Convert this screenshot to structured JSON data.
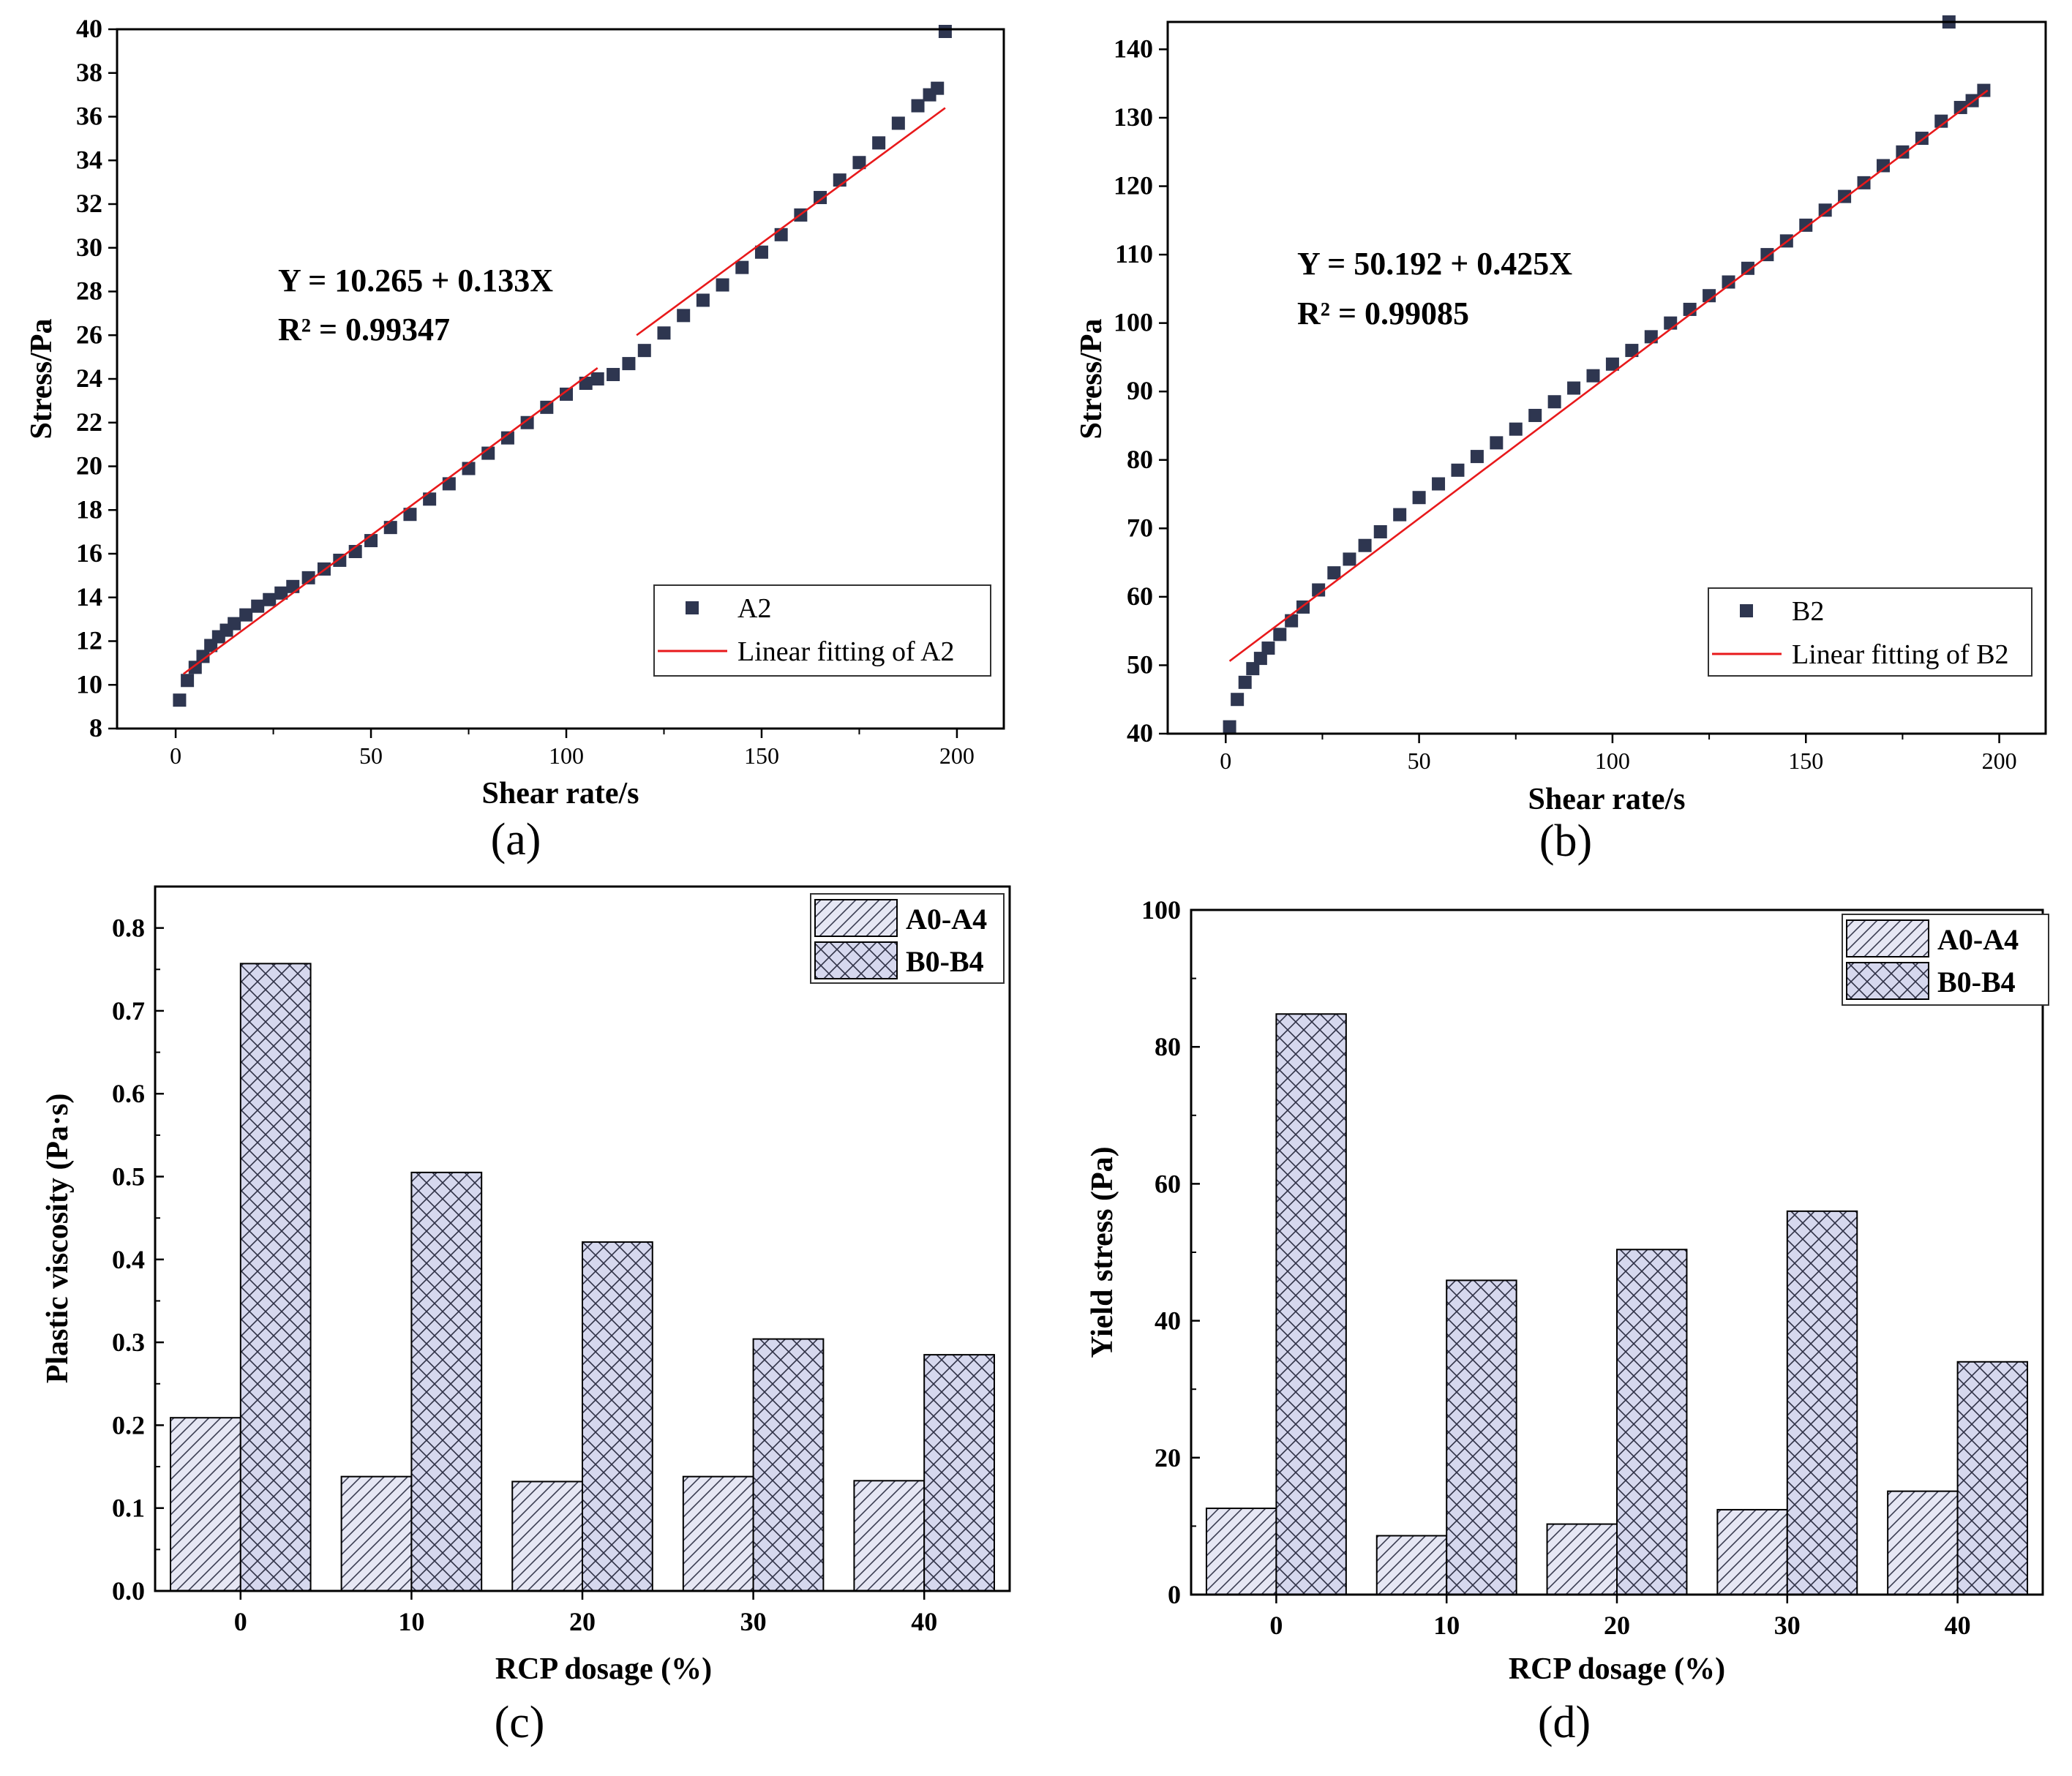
{
  "chart_data": [
    {
      "panel_label": "(a)",
      "type": "scatter",
      "xlabel": "Shear rate/s",
      "ylabel": "Stress/Pa",
      "xlim": [
        -15,
        212
      ],
      "ylim": [
        8,
        40
      ],
      "xticks": [
        0,
        50,
        100,
        150,
        200
      ],
      "yticks": [
        8,
        10,
        12,
        14,
        16,
        18,
        20,
        22,
        24,
        26,
        28,
        30,
        32,
        34,
        36,
        38,
        40
      ],
      "equation": "Y = 10.265 + 0.133X",
      "r_squared": "R² = 0.99347",
      "series": [
        {
          "name": "A2",
          "kind": "points",
          "color": "#2e3650",
          "x": [
            1,
            3,
            5,
            7,
            9,
            11,
            13,
            15,
            18,
            21,
            24,
            27,
            30,
            34,
            38,
            42,
            46,
            50,
            55,
            60,
            65,
            70,
            75,
            80,
            85,
            90,
            95,
            100,
            105,
            108,
            112,
            116,
            120,
            125,
            130,
            135,
            140,
            145,
            150,
            155,
            160,
            165,
            170,
            175,
            180,
            185,
            190,
            193,
            195,
            197
          ],
          "y": [
            9.3,
            10.2,
            10.8,
            11.3,
            11.8,
            12.2,
            12.5,
            12.8,
            13.2,
            13.6,
            13.9,
            14.2,
            14.5,
            14.9,
            15.3,
            15.7,
            16.1,
            16.6,
            17.2,
            17.8,
            18.5,
            19.2,
            19.9,
            20.6,
            21.3,
            22.0,
            22.7,
            23.3,
            23.8,
            24.0,
            24.2,
            24.7,
            25.3,
            26.1,
            26.9,
            27.6,
            28.3,
            29.1,
            29.8,
            30.6,
            31.5,
            32.3,
            33.1,
            33.9,
            34.8,
            35.7,
            36.5,
            37.0,
            37.3,
            39.9
          ]
        },
        {
          "name": "Linear fitting of A2",
          "kind": "segments",
          "color": "#e8191b",
          "segments": [
            [
              [
                2,
                10.5
              ],
              [
                108,
                24.5
              ]
            ],
            [
              [
                118,
                26.0
              ],
              [
                197,
                36.4
              ]
            ]
          ]
        }
      ],
      "legend": [
        "A2",
        "Linear fitting of A2"
      ],
      "legend_position": "bottom-right"
    },
    {
      "panel_label": "(b)",
      "type": "scatter",
      "xlabel": "Shear rate/s",
      "ylabel": "Stress/Pa",
      "xlim": [
        -15,
        212
      ],
      "ylim": [
        40,
        144
      ],
      "xticks": [
        0,
        50,
        100,
        150,
        200
      ],
      "yticks": [
        40,
        50,
        60,
        70,
        80,
        90,
        100,
        110,
        120,
        130,
        140
      ],
      "equation": "Y = 50.192 + 0.425X",
      "r_squared": "R² = 0.99085",
      "series": [
        {
          "name": "B2",
          "kind": "points",
          "color": "#2e3650",
          "x": [
            1,
            3,
            5,
            7,
            9,
            11,
            14,
            17,
            20,
            24,
            28,
            32,
            36,
            40,
            45,
            50,
            55,
            60,
            65,
            70,
            75,
            80,
            85,
            90,
            95,
            100,
            105,
            110,
            115,
            120,
            125,
            130,
            135,
            140,
            145,
            150,
            155,
            160,
            165,
            170,
            175,
            180,
            185,
            190,
            193,
            196,
            187
          ],
          "y": [
            41,
            45,
            47.5,
            49.5,
            51,
            52.5,
            54.5,
            56.5,
            58.5,
            61,
            63.5,
            65.5,
            67.5,
            69.5,
            72,
            74.5,
            76.5,
            78.5,
            80.5,
            82.5,
            84.5,
            86.5,
            88.5,
            90.5,
            92.3,
            94,
            96,
            98,
            100,
            102,
            104,
            106,
            108,
            110,
            112,
            114.3,
            116.5,
            118.5,
            120.5,
            123,
            125,
            127,
            129.5,
            131.5,
            132.5,
            134,
            144
          ]
        },
        {
          "name": "Linear fitting of B2",
          "kind": "segments",
          "color": "#e8191b",
          "segments": [
            [
              [
                1,
                50.6
              ],
              [
                197,
                134.0
              ]
            ]
          ]
        }
      ],
      "legend": [
        "B2",
        "Linear fitting of B2"
      ],
      "legend_position": "bottom-right"
    },
    {
      "panel_label": "(c)",
      "type": "bar",
      "xlabel": "RCP dosage (%)",
      "ylabel": "Plastic viscosity (Pa·s)",
      "categories": [
        "0",
        "10",
        "20",
        "30",
        "40"
      ],
      "ylim": [
        0,
        0.85
      ],
      "yticks": [
        0.0,
        0.1,
        0.2,
        0.3,
        0.4,
        0.5,
        0.6,
        0.7,
        0.8
      ],
      "yticklabels": [
        "0.0",
        "0.1",
        "0.2",
        "0.3",
        "0.4",
        "0.5",
        "0.6",
        "0.7",
        "0.8"
      ],
      "series": [
        {
          "name": "A0-A4",
          "pattern": "diag",
          "values": [
            0.209,
            0.138,
            0.132,
            0.138,
            0.133
          ]
        },
        {
          "name": "B0-B4",
          "pattern": "cross",
          "values": [
            0.757,
            0.505,
            0.421,
            0.304,
            0.285
          ]
        }
      ],
      "legend_position": "top-right"
    },
    {
      "panel_label": "(d)",
      "type": "bar",
      "xlabel": "RCP dosage (%)",
      "ylabel": "Yield stress (Pa)",
      "categories": [
        "0",
        "10",
        "20",
        "30",
        "40"
      ],
      "ylim": [
        0,
        100
      ],
      "yticks": [
        0,
        20,
        40,
        60,
        80,
        100
      ],
      "yticklabels": [
        "0",
        "20",
        "40",
        "60",
        "80",
        "100"
      ],
      "series": [
        {
          "name": "A0-A4",
          "pattern": "diag",
          "values": [
            12.6,
            8.6,
            10.3,
            12.4,
            15.1
          ]
        },
        {
          "name": "B0-B4",
          "pattern": "cross",
          "values": [
            84.8,
            45.9,
            50.4,
            56.0,
            34.0
          ]
        }
      ],
      "legend_position": "top-right"
    }
  ]
}
